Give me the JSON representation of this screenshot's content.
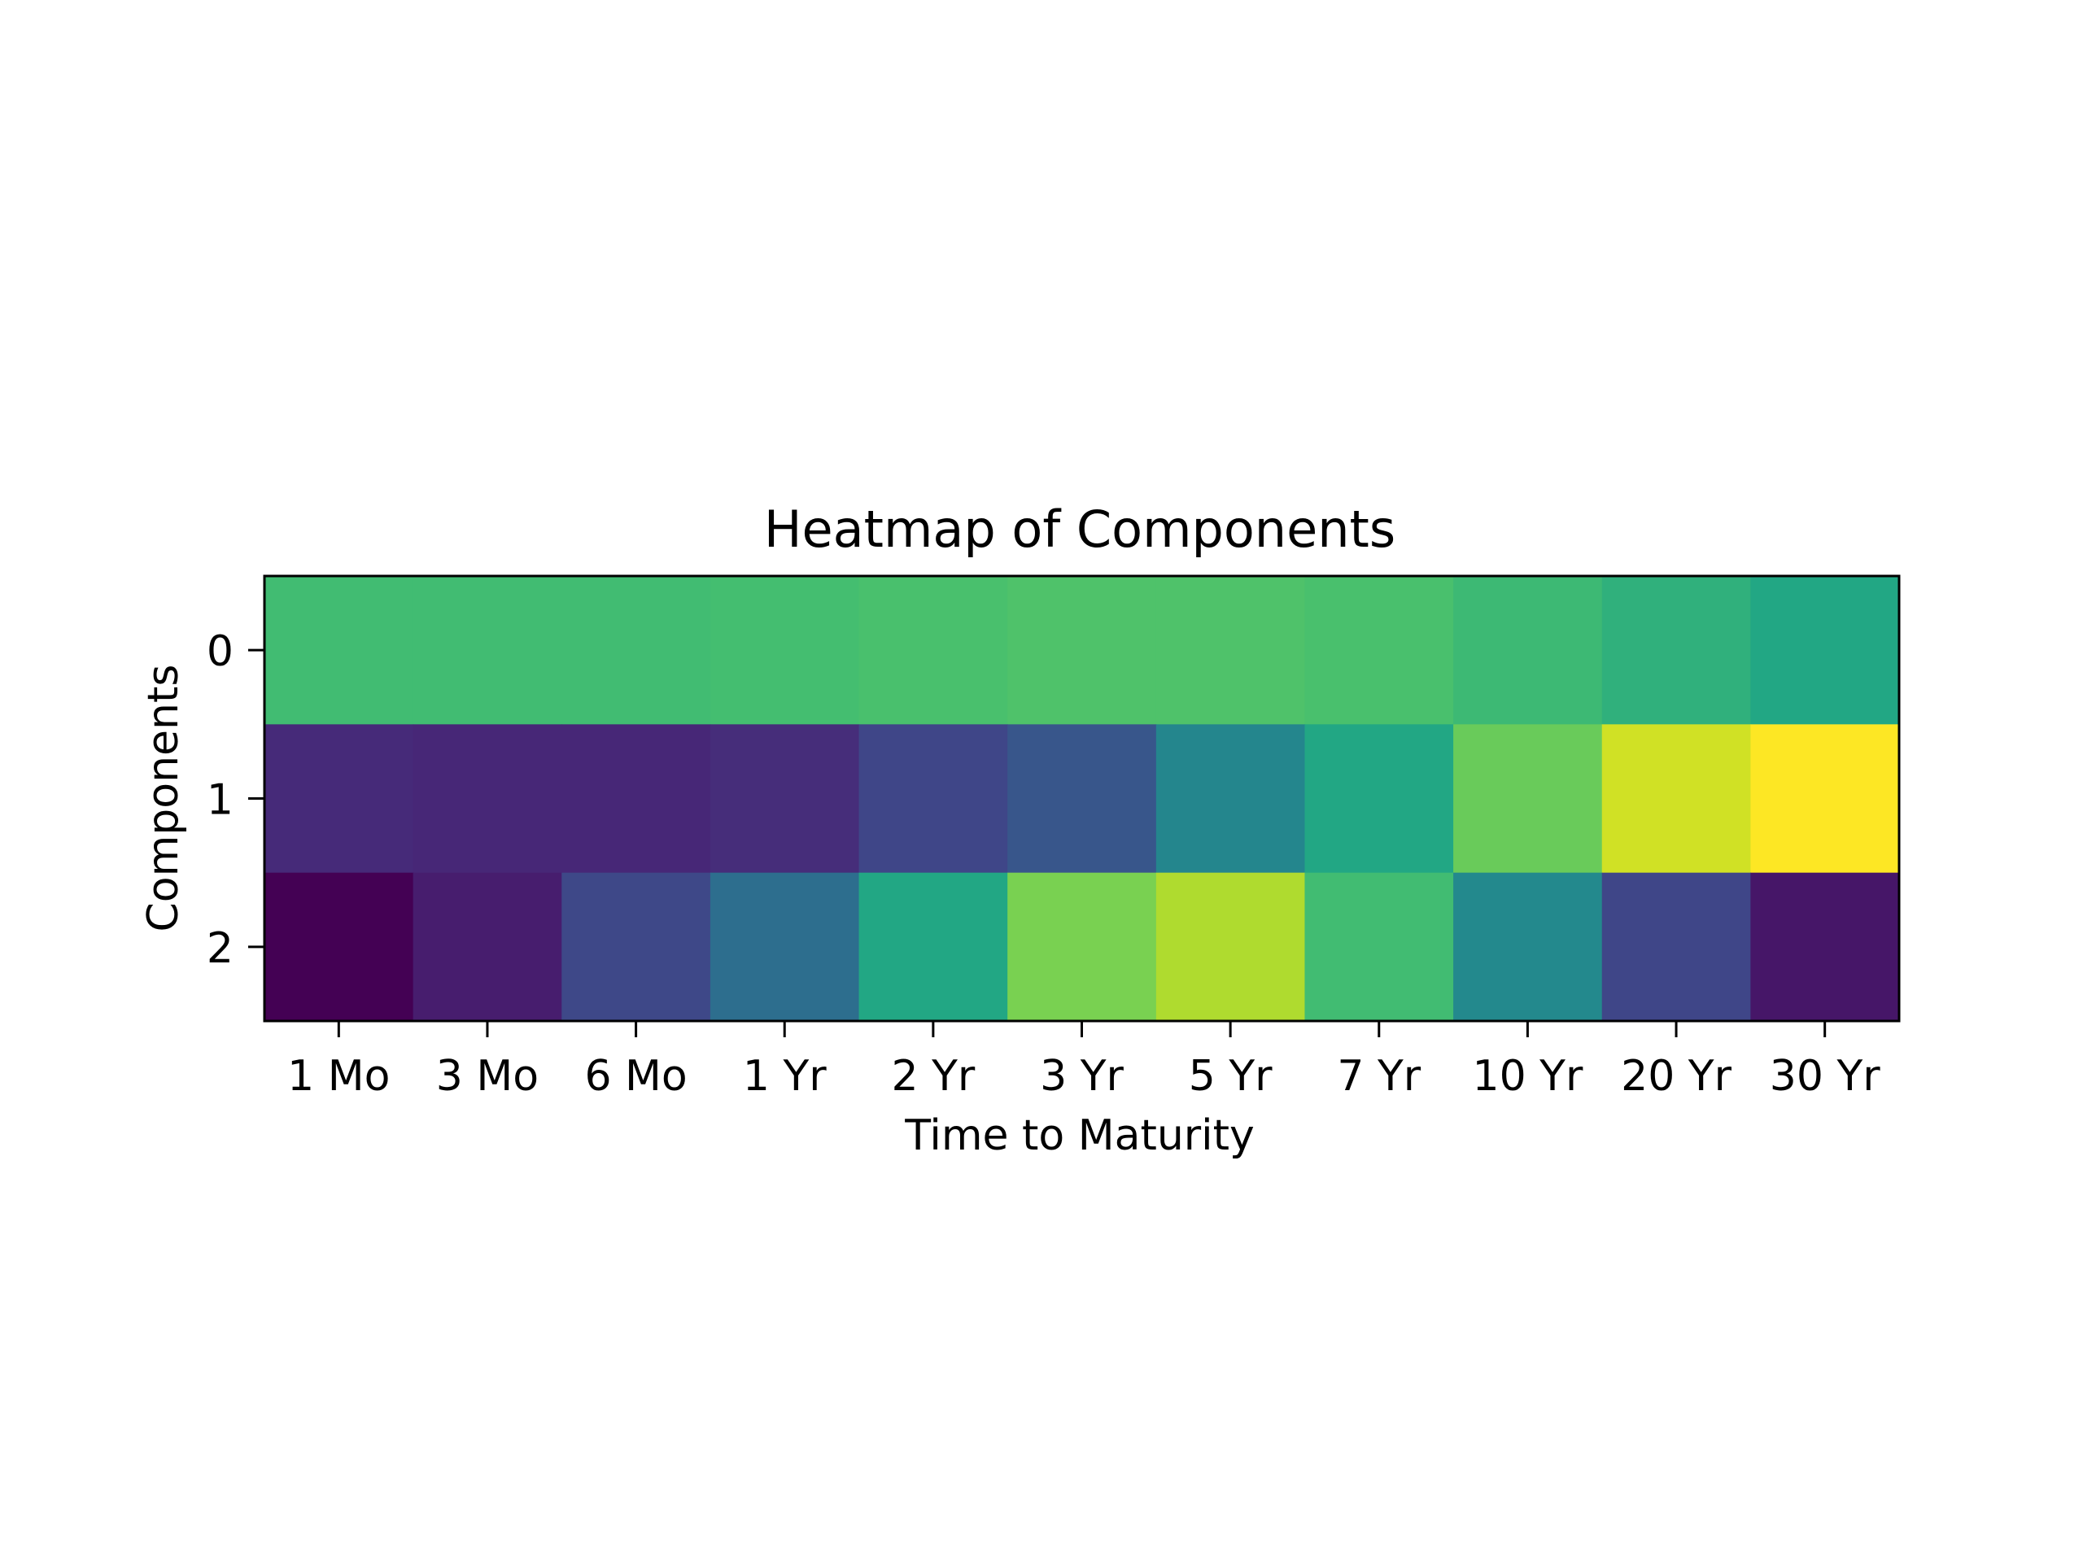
{
  "chart_data": {
    "type": "heatmap",
    "title": "Heatmap of Components",
    "xlabel": "Time to Maturity",
    "ylabel": "Components",
    "x_categories": [
      "1 Mo",
      "3 Mo",
      "6 Mo",
      "1 Yr",
      "2 Yr",
      "3 Yr",
      "5 Yr",
      "7 Yr",
      "10 Yr",
      "20 Yr",
      "30 Yr"
    ],
    "y_categories": [
      "0",
      "1",
      "2"
    ],
    "colormap": "viridis",
    "grid": false,
    "colorbar": false,
    "values": [
      [
        0.69,
        0.69,
        0.69,
        0.7,
        0.71,
        0.72,
        0.72,
        0.71,
        0.68,
        0.64,
        0.6
      ],
      [
        0.12,
        0.11,
        0.11,
        0.13,
        0.21,
        0.27,
        0.46,
        0.6,
        0.77,
        0.93,
        1.0
      ],
      [
        0.0,
        0.08,
        0.22,
        0.36,
        0.6,
        0.8,
        0.88,
        0.69,
        0.47,
        0.21,
        0.06
      ]
    ]
  }
}
